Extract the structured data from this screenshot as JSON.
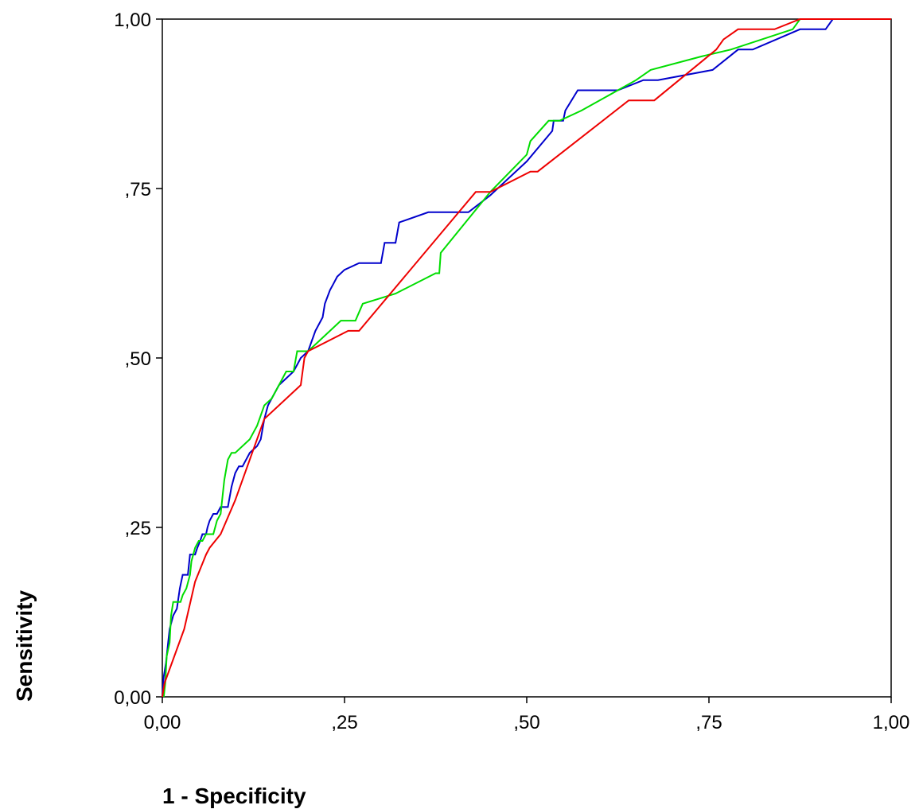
{
  "chart_data": {
    "type": "line",
    "title": "",
    "xlabel": "1 - Specificity",
    "ylabel": "Sensitivity",
    "xlim": [
      0,
      1
    ],
    "ylim": [
      0,
      1
    ],
    "x_ticks": [
      {
        "value": 0,
        "label": "0,00"
      },
      {
        "value": 0.25,
        "label": ",25"
      },
      {
        "value": 0.5,
        "label": ",50"
      },
      {
        "value": 0.75,
        "label": ",75"
      },
      {
        "value": 1,
        "label": "1,00"
      }
    ],
    "y_ticks": [
      {
        "value": 0,
        "label": "0,00"
      },
      {
        "value": 0.25,
        "label": ",25"
      },
      {
        "value": 0.5,
        "label": ",50"
      },
      {
        "value": 0.75,
        "label": ",75"
      },
      {
        "value": 1,
        "label": "1,00"
      }
    ],
    "grid": false,
    "legend": "none",
    "series": [
      {
        "color": "#0000cc",
        "points": [
          [
            0,
            0
          ],
          [
            0.002,
            0.03
          ],
          [
            0.005,
            0.05
          ],
          [
            0.008,
            0.08
          ],
          [
            0.01,
            0.1
          ],
          [
            0.015,
            0.12
          ],
          [
            0.02,
            0.13
          ],
          [
            0.024,
            0.16
          ],
          [
            0.028,
            0.18
          ],
          [
            0.035,
            0.18
          ],
          [
            0.038,
            0.21
          ],
          [
            0.045,
            0.21
          ],
          [
            0.048,
            0.22
          ],
          [
            0.052,
            0.23
          ],
          [
            0.055,
            0.24
          ],
          [
            0.06,
            0.24
          ],
          [
            0.062,
            0.25
          ],
          [
            0.065,
            0.26
          ],
          [
            0.07,
            0.27
          ],
          [
            0.075,
            0.27
          ],
          [
            0.08,
            0.28
          ],
          [
            0.09,
            0.28
          ],
          [
            0.095,
            0.31
          ],
          [
            0.1,
            0.33
          ],
          [
            0.105,
            0.34
          ],
          [
            0.11,
            0.34
          ],
          [
            0.12,
            0.36
          ],
          [
            0.13,
            0.37
          ],
          [
            0.135,
            0.38
          ],
          [
            0.14,
            0.41
          ],
          [
            0.145,
            0.43
          ],
          [
            0.15,
            0.44
          ],
          [
            0.16,
            0.46
          ],
          [
            0.17,
            0.47
          ],
          [
            0.18,
            0.48
          ],
          [
            0.185,
            0.49
          ],
          [
            0.19,
            0.5
          ],
          [
            0.2,
            0.51
          ],
          [
            0.21,
            0.54
          ],
          [
            0.22,
            0.56
          ],
          [
            0.223,
            0.58
          ],
          [
            0.23,
            0.6
          ],
          [
            0.235,
            0.61
          ],
          [
            0.24,
            0.62
          ],
          [
            0.25,
            0.63
          ],
          [
            0.27,
            0.64
          ],
          [
            0.3,
            0.64
          ],
          [
            0.305,
            0.67
          ],
          [
            0.32,
            0.67
          ],
          [
            0.325,
            0.7
          ],
          [
            0.365,
            0.715
          ],
          [
            0.42,
            0.715
          ],
          [
            0.45,
            0.74
          ],
          [
            0.5,
            0.79
          ],
          [
            0.535,
            0.835
          ],
          [
            0.537,
            0.85
          ],
          [
            0.55,
            0.85
          ],
          [
            0.553,
            0.865
          ],
          [
            0.57,
            0.895
          ],
          [
            0.625,
            0.895
          ],
          [
            0.66,
            0.91
          ],
          [
            0.68,
            0.91
          ],
          [
            0.755,
            0.925
          ],
          [
            0.79,
            0.955
          ],
          [
            0.81,
            0.955
          ],
          [
            0.875,
            0.985
          ],
          [
            0.91,
            0.985
          ],
          [
            0.92,
            1.0
          ],
          [
            1.0,
            1.0
          ]
        ]
      },
      {
        "color": "#00dd00",
        "points": [
          [
            0.002,
            0
          ],
          [
            0.004,
            0.02
          ],
          [
            0.006,
            0.06
          ],
          [
            0.01,
            0.08
          ],
          [
            0.012,
            0.12
          ],
          [
            0.015,
            0.14
          ],
          [
            0.025,
            0.14
          ],
          [
            0.028,
            0.15
          ],
          [
            0.033,
            0.16
          ],
          [
            0.038,
            0.18
          ],
          [
            0.04,
            0.2
          ],
          [
            0.045,
            0.22
          ],
          [
            0.05,
            0.23
          ],
          [
            0.055,
            0.23
          ],
          [
            0.06,
            0.24
          ],
          [
            0.07,
            0.24
          ],
          [
            0.075,
            0.26
          ],
          [
            0.08,
            0.27
          ],
          [
            0.085,
            0.32
          ],
          [
            0.09,
            0.35
          ],
          [
            0.095,
            0.36
          ],
          [
            0.1,
            0.36
          ],
          [
            0.12,
            0.38
          ],
          [
            0.125,
            0.39
          ],
          [
            0.13,
            0.4
          ],
          [
            0.14,
            0.43
          ],
          [
            0.15,
            0.44
          ],
          [
            0.16,
            0.46
          ],
          [
            0.17,
            0.48
          ],
          [
            0.18,
            0.48
          ],
          [
            0.185,
            0.51
          ],
          [
            0.2,
            0.51
          ],
          [
            0.21,
            0.52
          ],
          [
            0.245,
            0.555
          ],
          [
            0.265,
            0.555
          ],
          [
            0.275,
            0.58
          ],
          [
            0.32,
            0.595
          ],
          [
            0.375,
            0.625
          ],
          [
            0.38,
            0.625
          ],
          [
            0.382,
            0.655
          ],
          [
            0.45,
            0.745
          ],
          [
            0.5,
            0.8
          ],
          [
            0.505,
            0.82
          ],
          [
            0.53,
            0.85
          ],
          [
            0.545,
            0.85
          ],
          [
            0.575,
            0.865
          ],
          [
            0.65,
            0.91
          ],
          [
            0.67,
            0.925
          ],
          [
            0.74,
            0.945
          ],
          [
            0.78,
            0.955
          ],
          [
            0.865,
            0.985
          ],
          [
            0.875,
            1.0
          ],
          [
            1.0,
            1.0
          ]
        ]
      },
      {
        "color": "#ee0000",
        "points": [
          [
            0,
            0
          ],
          [
            0.003,
            0.02
          ],
          [
            0.03,
            0.1
          ],
          [
            0.045,
            0.17
          ],
          [
            0.06,
            0.21
          ],
          [
            0.065,
            0.22
          ],
          [
            0.08,
            0.24
          ],
          [
            0.1,
            0.29
          ],
          [
            0.12,
            0.35
          ],
          [
            0.14,
            0.41
          ],
          [
            0.19,
            0.46
          ],
          [
            0.195,
            0.5
          ],
          [
            0.2,
            0.51
          ],
          [
            0.255,
            0.54
          ],
          [
            0.27,
            0.54
          ],
          [
            0.43,
            0.745
          ],
          [
            0.45,
            0.745
          ],
          [
            0.505,
            0.775
          ],
          [
            0.515,
            0.775
          ],
          [
            0.64,
            0.88
          ],
          [
            0.675,
            0.88
          ],
          [
            0.76,
            0.955
          ],
          [
            0.77,
            0.97
          ],
          [
            0.79,
            0.985
          ],
          [
            0.84,
            0.985
          ],
          [
            0.875,
            1.0
          ],
          [
            1.0,
            1.0
          ]
        ]
      }
    ]
  }
}
